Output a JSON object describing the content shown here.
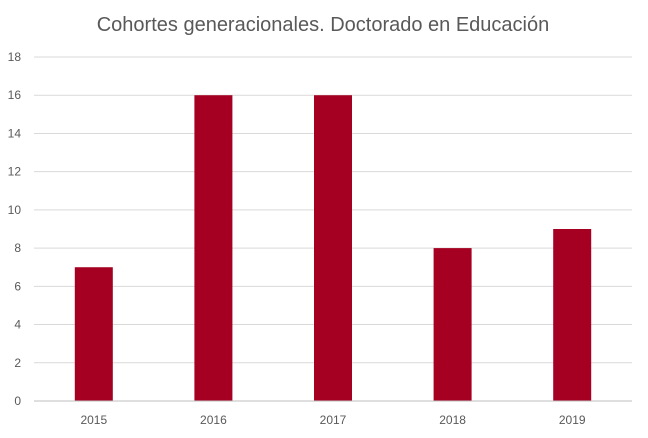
{
  "chart_data": {
    "type": "bar",
    "title": "Cohortes generacionales. Doctorado en Educación",
    "categories": [
      "2015",
      "2016",
      "2017",
      "2018",
      "2019"
    ],
    "values": [
      7,
      16,
      16,
      8,
      9
    ],
    "ylim": [
      0,
      18
    ],
    "yticks": [
      "0",
      "2",
      "4",
      "6",
      "8",
      "10",
      "12",
      "14",
      "16",
      "18"
    ],
    "xlabel": "",
    "ylabel": "",
    "grid": true,
    "legend": "none",
    "bar_color": "#a50021"
  }
}
